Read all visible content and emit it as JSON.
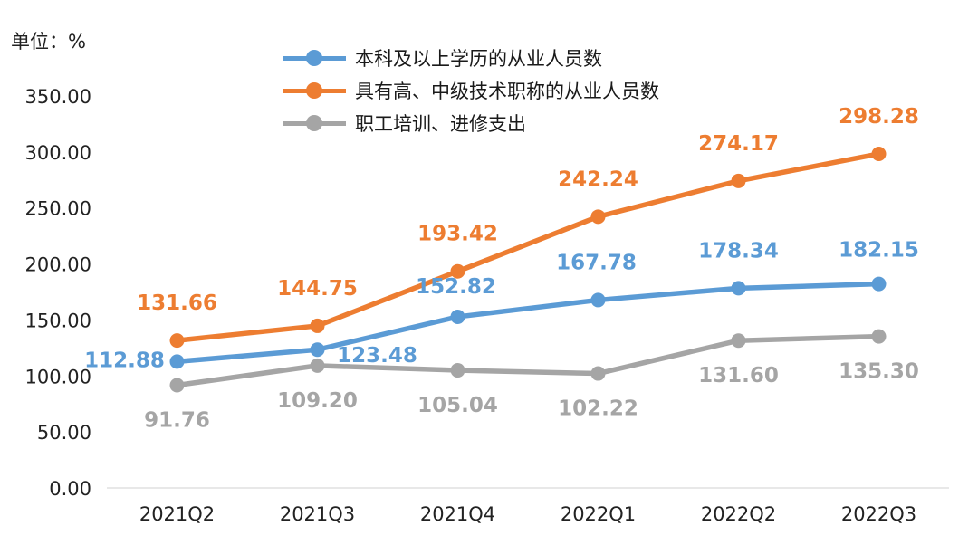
{
  "unit_label": "单位：%",
  "legend_entries": [
    {
      "label": "本科及以上学历的从业人员数",
      "color": "#5B9BD5"
    },
    {
      "label": "具有高、中级技术职称的从业人员数",
      "color": "#ED7D31"
    },
    {
      "label": "职工培训、进修支出",
      "color": "#A5A5A5"
    }
  ],
  "chart_data": {
    "type": "line",
    "categories": [
      "2021Q2",
      "2021Q3",
      "2021Q4",
      "2022Q1",
      "2022Q2",
      "2022Q3"
    ],
    "ylim": [
      0,
      350
    ],
    "yticks": [
      "0.00",
      "50.00",
      "100.00",
      "150.00",
      "200.00",
      "250.00",
      "300.00",
      "350.00"
    ],
    "grid": false,
    "legend_position": "top",
    "series": [
      {
        "name": "本科及以上学历的从业人员数",
        "color": "#5B9BD5",
        "values": [
          112.88,
          123.48,
          152.82,
          167.78,
          178.34,
          182.15
        ],
        "labels": [
          "112.88",
          "123.48",
          "152.82",
          "167.78",
          "178.34",
          "182.15"
        ]
      },
      {
        "name": "具有高、中级技术职称的从业人员数",
        "color": "#ED7D31",
        "values": [
          131.66,
          144.75,
          193.42,
          242.24,
          274.17,
          298.28
        ],
        "labels": [
          "131.66",
          "144.75",
          "193.42",
          "242.24",
          "274.17",
          "298.28"
        ]
      },
      {
        "name": "职工培训、进修支出",
        "color": "#A5A5A5",
        "values": [
          91.76,
          109.2,
          105.04,
          102.22,
          131.6,
          135.3
        ],
        "labels": [
          "91.76",
          "109.20",
          "105.04",
          "102.22",
          "131.60",
          "135.30"
        ]
      }
    ]
  }
}
